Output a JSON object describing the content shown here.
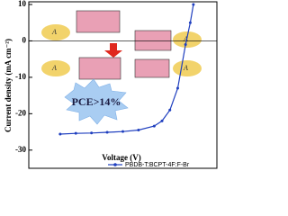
{
  "chart_data": {
    "type": "line",
    "x_label": "Voltage (V)",
    "y_label": "Current density (mA cm⁻²)",
    "annotation": "PCE>14%",
    "molecule_labels": [
      "A",
      "A",
      "A",
      "A"
    ],
    "x": [
      0,
      0.1,
      0.2,
      0.3,
      0.4,
      0.5,
      0.6,
      0.65,
      0.7,
      0.75,
      0.8,
      0.83,
      0.85
    ],
    "series": [
      {
        "name": "PBDB-T:BCPT-4F:F-Br",
        "color": "#1f3fbf",
        "values": [
          -25.6,
          -25.4,
          -25.3,
          -25.1,
          -24.9,
          -24.5,
          -23.4,
          -22,
          -19,
          -13,
          -1,
          5,
          10
        ]
      }
    ],
    "xlim": [
      -0.2,
      1.0
    ],
    "ylim": [
      -35,
      10
    ],
    "yticks": [
      -30,
      -20,
      -10,
      0,
      10
    ],
    "legend": "lower right"
  }
}
